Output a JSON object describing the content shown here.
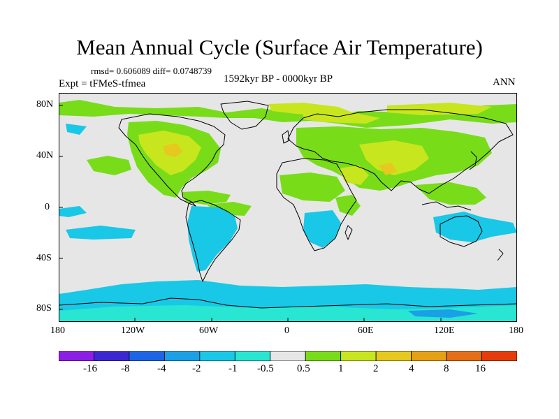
{
  "title": "Mean Annual Cycle (Surface Air Temperature)",
  "stats": "rmsd= 0.606089 diff= 0.0748739",
  "experiment": "Expt = tFMeS-tfmea",
  "period": "1592kyr BP - 0000kyr BP",
  "season": "ANN",
  "lat_labels": [
    "80N",
    "40N",
    "0",
    "40S",
    "80S"
  ],
  "lon_labels": [
    "180",
    "120W",
    "60W",
    "0",
    "60E",
    "120E",
    "180"
  ],
  "colorbar": {
    "labels": [
      "-16",
      "-8",
      "-4",
      "-2",
      "-1",
      "-0.5",
      "0.5",
      "1",
      "2",
      "4",
      "8",
      "16"
    ],
    "colors": [
      "#8c1ee6",
      "#3c28d2",
      "#1e64e6",
      "#19a0e6",
      "#19c8e6",
      "#28e6d2",
      "#e6e6e6",
      "#78dc19",
      "#c8e61e",
      "#e6c81e",
      "#e6a014",
      "#e66e14",
      "#e63c0a"
    ]
  }
}
